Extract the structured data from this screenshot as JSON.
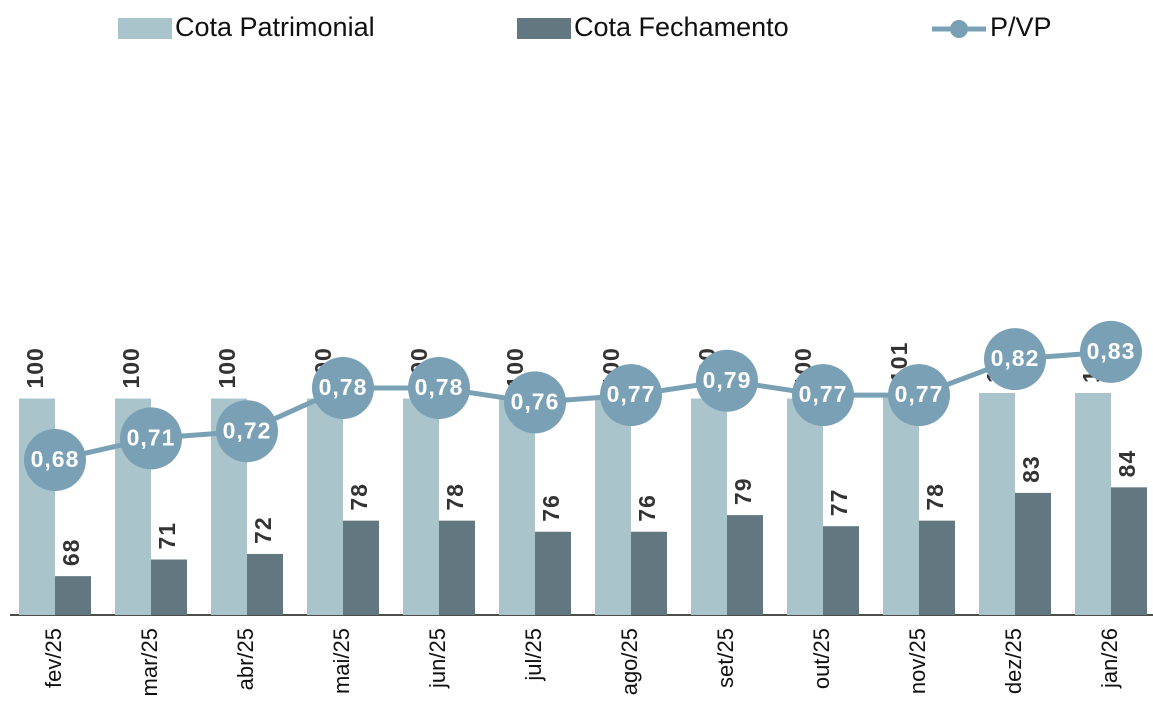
{
  "chart_data": {
    "type": "bar_line",
    "categories": [
      "fev/25",
      "mar/25",
      "abr/25",
      "mai/25",
      "jun/25",
      "jul/25",
      "ago/25",
      "set/25",
      "out/25",
      "nov/25",
      "dez/25",
      "jan/26"
    ],
    "series": [
      {
        "name": "Cota Patrimonial",
        "type": "bar",
        "color": "#a9c4cb",
        "values": [
          100,
          100,
          100,
          100,
          100,
          100,
          100,
          100,
          100,
          101,
          101,
          101
        ]
      },
      {
        "name": "Cota Fechamento",
        "type": "bar",
        "color": "#62777f",
        "values": [
          68,
          71,
          72,
          78,
          78,
          76,
          76,
          79,
          77,
          78,
          83,
          84
        ]
      },
      {
        "name": "P/VP",
        "type": "line",
        "axis": "y2",
        "color": "#7aa0b6",
        "values": [
          0.68,
          0.71,
          0.72,
          0.78,
          0.78,
          0.76,
          0.77,
          0.79,
          0.77,
          0.77,
          0.82,
          0.83
        ],
        "value_labels": [
          "0,68",
          "0,71",
          "0,72",
          "0,78",
          "0,78",
          "0,76",
          "0,77",
          "0,79",
          "0,77",
          "0,77",
          "0,82",
          "0,83"
        ]
      }
    ],
    "ylim": [
      61,
      161
    ],
    "y2lim": [
      0.465,
      1.235
    ],
    "legend": "top"
  }
}
